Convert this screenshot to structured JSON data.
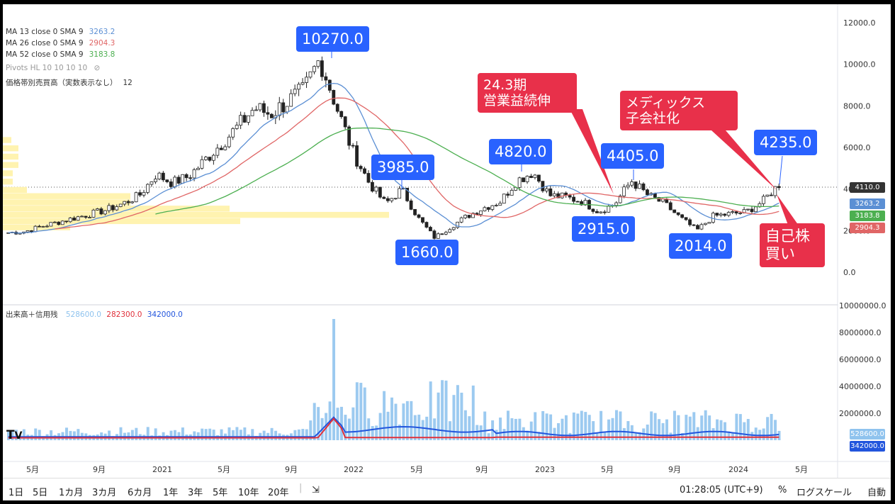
{
  "legend": {
    "ma13": {
      "label": "MA 13 close 0 SMA 9",
      "value": "3263.2",
      "color": "#5b8fd4"
    },
    "ma26": {
      "label": "MA 26 close 0 SMA 9",
      "value": "2904.3",
      "color": "#e06666"
    },
    "ma52": {
      "label": "MA 52 close 0 SMA 9",
      "value": "3183.8",
      "color": "#4caf50"
    },
    "pivots": {
      "label": "Pivots HL 10 10 10 10"
    },
    "volume_profile": {
      "label": "価格帯別売買高（実数表示なし）",
      "value": "12"
    },
    "volume": {
      "label": "出来高＋信用残",
      "v1": "528600.0",
      "v2": "282300.0",
      "v3": "342000.0",
      "c1": "#8fc3ee",
      "c2": "#e0303a",
      "c3": "#2255dd"
    }
  },
  "price_axis": [
    "12000.0",
    "10000.0",
    "8000.0",
    "6000.0",
    "4000.0",
    "2000.0",
    "0.0"
  ],
  "volume_axis": [
    "10000000.0",
    "8000000.0",
    "6000000.0",
    "4000000.0",
    "2000000.0"
  ],
  "time_axis": [
    "5月",
    "9月",
    "2021",
    "5月",
    "9月",
    "2022",
    "5月",
    "9月",
    "2023",
    "5月",
    "9月",
    "2024",
    "5月"
  ],
  "price_tags": {
    "last": "4110.0",
    "ma13": "3263.2",
    "ma52": "3183.8",
    "ma26": "2904.3",
    "vol": "528600.0",
    "vol2": "342000.0"
  },
  "callouts": {
    "c10270": "10270.0",
    "c3985": "3985.0",
    "c1660": "1660.0",
    "c4820": "4820.0",
    "c2915": "2915.0",
    "c4405": "4405.0",
    "c2014": "2014.0",
    "c4235": "4235.0",
    "note1_line1": "24.3期",
    "note1_line2": "営業益続伸",
    "note2_line1": "メディックス",
    "note2_line2": "子会社化",
    "note3_line1": "自己株",
    "note3_line2": "買い"
  },
  "toolbar": {
    "ranges": [
      "1日",
      "5日",
      "1カ月",
      "3カ月",
      "6カ月",
      "1年",
      "3年",
      "5年",
      "10年",
      "20年"
    ],
    "time": "01:28:05 (UTC+9)",
    "pct": "%",
    "log": "ログスケール",
    "auto": "自動"
  },
  "chart_data": {
    "type": "candlestick",
    "price_ylim": [
      0,
      12000
    ],
    "volume_ylim": [
      0,
      10000000
    ],
    "weeks": [
      [
        "2020-04",
        1900
      ],
      [
        "2020-05",
        1950
      ],
      [
        "2020-06",
        2200
      ],
      [
        "2020-07",
        2400
      ],
      [
        "2020-08",
        2600
      ],
      [
        "2020-09",
        2800
      ],
      [
        "2020-10",
        3000
      ],
      [
        "2020-11",
        3300
      ],
      [
        "2020-12",
        3700
      ],
      [
        "2021-01",
        4700
      ],
      [
        "2021-02",
        4300
      ],
      [
        "2021-03",
        4600
      ],
      [
        "2021-04",
        5400
      ],
      [
        "2021-05",
        6200
      ],
      [
        "2021-06",
        7000
      ],
      [
        "2021-07",
        7900
      ],
      [
        "2021-08",
        7600
      ],
      [
        "2021-09",
        8200
      ],
      [
        "2021-10",
        8700
      ],
      [
        "2021-11",
        10270
      ],
      [
        "2021-12",
        8000
      ],
      [
        "2022-01",
        5800
      ],
      [
        "2022-02",
        4300
      ],
      [
        "2022-03",
        3300
      ],
      [
        "2022-04",
        3985
      ],
      [
        "2022-05",
        2600
      ],
      [
        "2022-06",
        1660
      ],
      [
        "2022-07",
        2200
      ],
      [
        "2022-08",
        2700
      ],
      [
        "2022-09",
        3100
      ],
      [
        "2022-10",
        3400
      ],
      [
        "2022-11",
        4400
      ],
      [
        "2022-12",
        4820
      ],
      [
        "2023-01",
        3700
      ],
      [
        "2023-02",
        3600
      ],
      [
        "2023-03",
        3400
      ],
      [
        "2023-04",
        2915
      ],
      [
        "2023-05",
        3300
      ],
      [
        "2023-06",
        4405
      ],
      [
        "2023-07",
        3700
      ],
      [
        "2023-08",
        3300
      ],
      [
        "2023-09",
        2600
      ],
      [
        "2023-10",
        2014
      ],
      [
        "2023-11",
        2700
      ],
      [
        "2023-12",
        2800
      ],
      [
        "2024-01",
        2900
      ],
      [
        "2024-02",
        3400
      ],
      [
        "2024-03",
        4235
      ]
    ],
    "ma13_last": 3263.2,
    "ma26_last": 2904.3,
    "ma52_last": 3183.8,
    "last_price": 4110.0,
    "volume_peak": 9000000
  }
}
